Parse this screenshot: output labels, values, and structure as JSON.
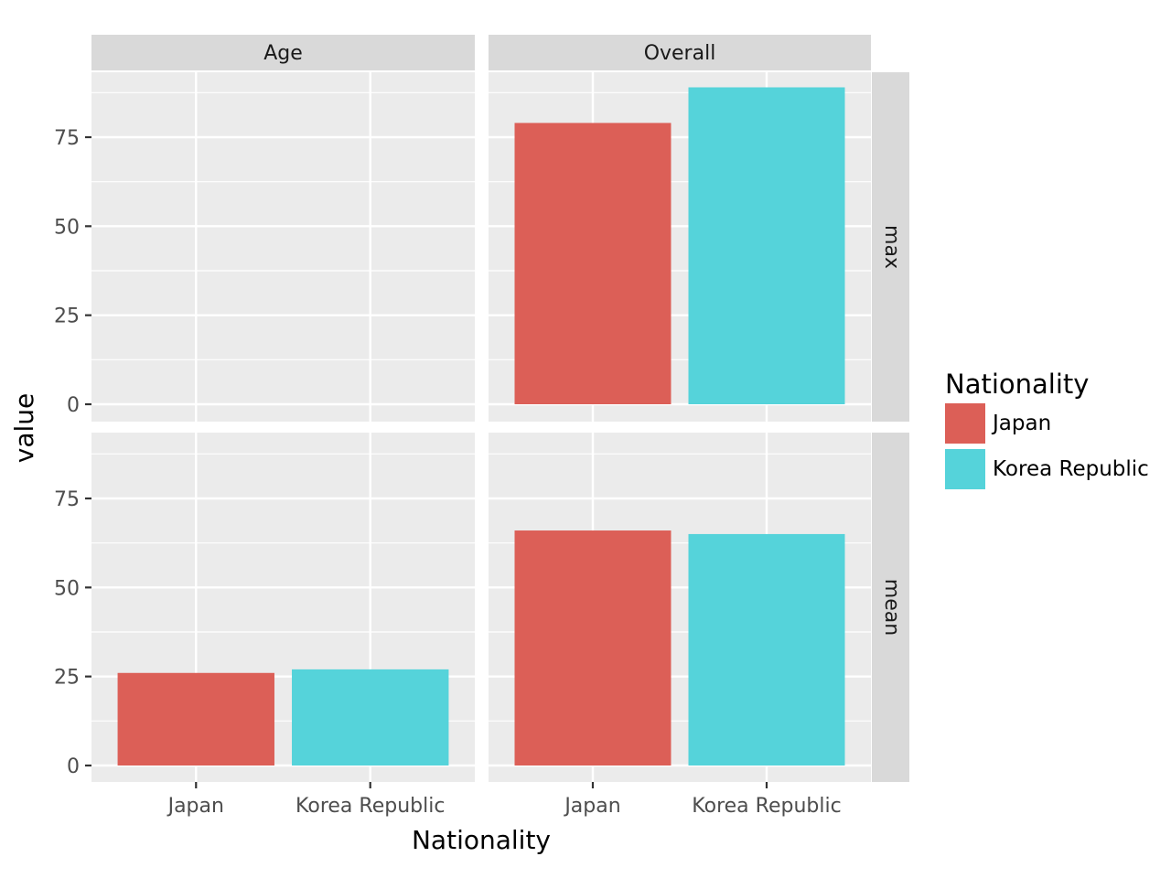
{
  "chart_data": {
    "type": "bar",
    "facet_columns": [
      "Age",
      "Overall"
    ],
    "facet_rows": [
      "max",
      "mean"
    ],
    "categories": [
      "Japan",
      "Korea Republic"
    ],
    "xlabel": "Nationality",
    "ylabel": "value",
    "ylim": [
      0,
      94
    ],
    "yticks": [
      0,
      25,
      50,
      75
    ],
    "grid": true,
    "legend": {
      "title": "Nationality",
      "position": "right",
      "entries": [
        {
          "label": "Japan",
          "color": "#dc5f57"
        },
        {
          "label": "Korea Republic",
          "color": "#55d3da"
        }
      ]
    },
    "panels": [
      {
        "column": "Age",
        "row": "max",
        "values": [
          null,
          null
        ]
      },
      {
        "column": "Overall",
        "row": "max",
        "values": [
          79,
          89
        ]
      },
      {
        "column": "Age",
        "row": "mean",
        "values": [
          26,
          27
        ]
      },
      {
        "column": "Overall",
        "row": "mean",
        "values": [
          66,
          65
        ]
      }
    ]
  }
}
